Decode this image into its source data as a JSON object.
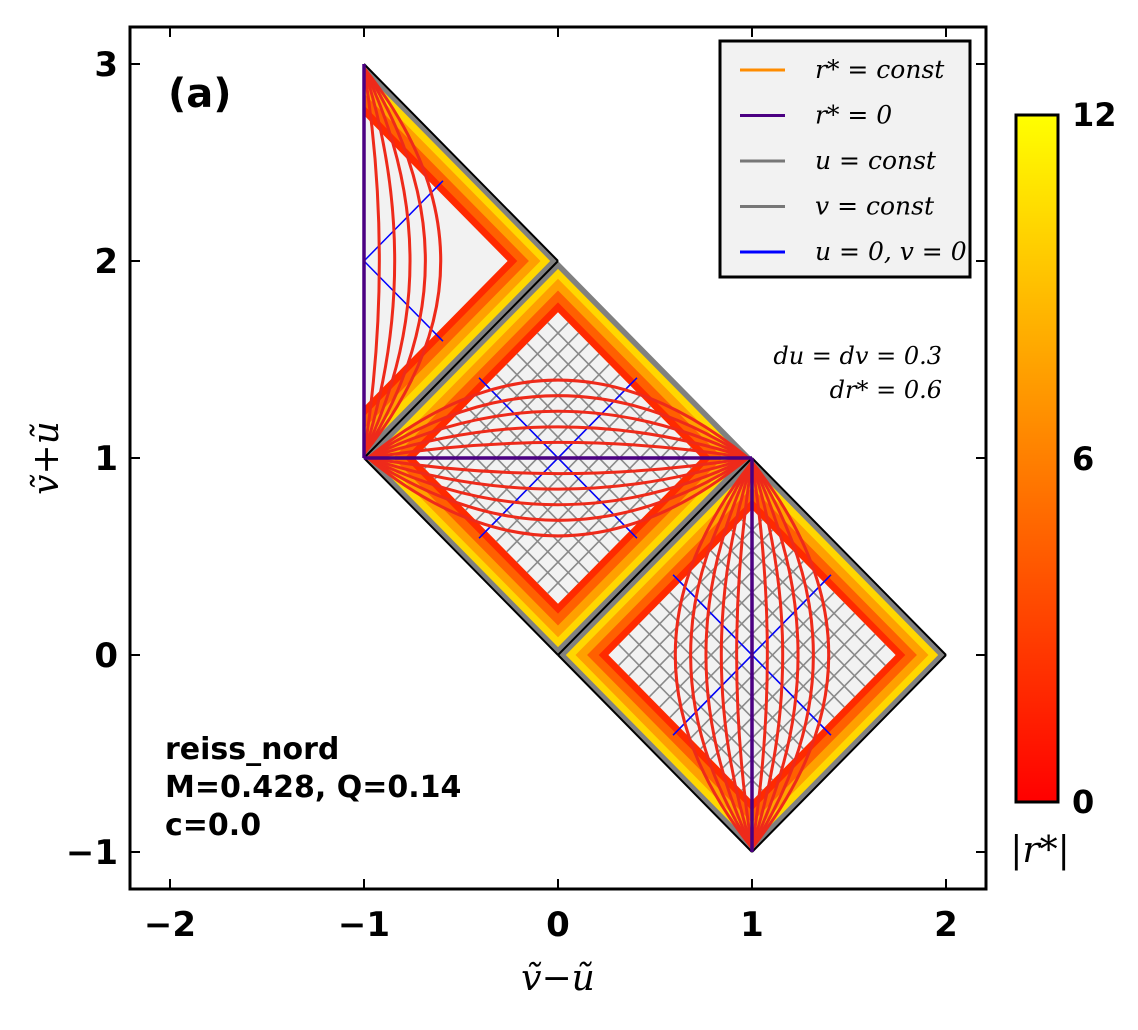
{
  "chart_data": {
    "type": "penrose-diagram",
    "panel_label": "(a)",
    "xlabel": "ṽ−ũ",
    "ylabel": "ṽ+ũ",
    "xlim": [
      -2.2,
      2.2
    ],
    "ylim": [
      -1.2,
      3.2
    ],
    "x_ticks": [
      -2,
      -1,
      0,
      1,
      2
    ],
    "x_tick_labels": [
      "−2",
      "−1",
      "0",
      "1",
      "2"
    ],
    "y_ticks": [
      -1,
      0,
      1,
      2,
      3
    ],
    "y_tick_labels": [
      "−1",
      "0",
      "1",
      "2",
      "3"
    ],
    "regions": [
      {
        "name": "lower-right",
        "center": [
          1,
          0
        ],
        "half_width": 1,
        "shape": "diamond"
      },
      {
        "name": "middle",
        "center": [
          0,
          1
        ],
        "half_width": 1,
        "shape": "diamond"
      },
      {
        "name": "upper-left",
        "center": [
          -1,
          2
        ],
        "half_width": 1,
        "shape": "diamond-half"
      }
    ],
    "r_star_zero_lines": [
      {
        "from": [
          -1,
          1
        ],
        "to": [
          1,
          1
        ]
      },
      {
        "from": [
          1,
          -1
        ],
        "to": [
          1,
          1
        ]
      },
      {
        "from": [
          -1,
          1
        ],
        "to": [
          -1,
          3
        ]
      }
    ],
    "legend": {
      "position": "top-right",
      "entries": [
        {
          "label": "r* = const",
          "color": "#ff8c00"
        },
        {
          "label": "r* = 0",
          "color": "#4b0082"
        },
        {
          "label": "u = const",
          "color": "#777777"
        },
        {
          "label": "v = const",
          "color": "#777777"
        },
        {
          "label": "u = 0, v = 0",
          "color": "#0000ff"
        }
      ]
    },
    "annotations": [
      "du = dv = 0.3",
      "dr* = 0.6"
    ],
    "info": [
      "reiss_nord",
      "M=0.428, Q=0.14",
      "c=0.0"
    ],
    "colorbar": {
      "label": "|r*|",
      "min": 0,
      "max": 12,
      "ticks": [
        0,
        6,
        12
      ],
      "tick_labels": [
        "0",
        "6",
        "12"
      ],
      "colormap": "autumn",
      "color_low": "#ff0000",
      "color_high": "#ffff00"
    },
    "grid": false
  }
}
